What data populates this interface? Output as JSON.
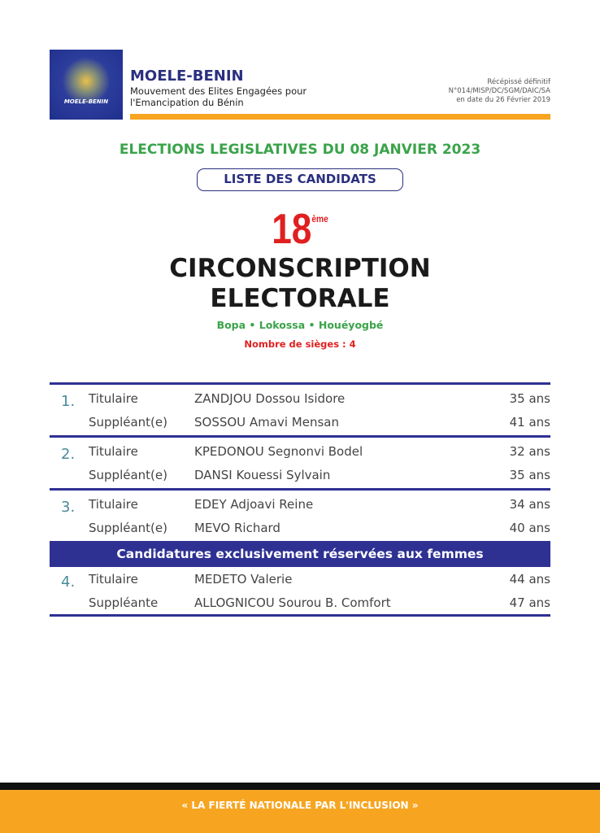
{
  "header": {
    "logo_text": "MOELE-BENIN",
    "brand": "MOELE-BENIN",
    "subtitle_line1": "Mouvement des Elites Engagées pour",
    "subtitle_line2": "l'Emancipation du Bénin",
    "receipt_line1": "Récépissé définitif",
    "receipt_line2": "N°014/MISP/DC/SGM/DAIC/SA",
    "receipt_line3": "en date du 26 Février 2019",
    "accent_color": "#f7a521",
    "brand_color": "#2a2f7f"
  },
  "title": {
    "elections": "ELECTIONS LEGISLATIVES DU 08 JANVIER 2023",
    "list_label": "LISTE DES CANDIDATS",
    "number": "18",
    "suffix": "ème",
    "circ_line1": "CIRCONSCRIPTION",
    "circ_line2": "ELECTORALE",
    "places": "Bopa • Lokossa • Houéyogbé",
    "seats": "Nombre de sièges : 4"
  },
  "candidates": [
    {
      "index": "1.",
      "rows": [
        {
          "role": "Titulaire",
          "name": "ZANDJOU Dossou Isidore",
          "age": "35 ans"
        },
        {
          "role": "Suppléant(e)",
          "name": "SOSSOU Amavi Mensan",
          "age": "41 ans"
        }
      ]
    },
    {
      "index": "2.",
      "rows": [
        {
          "role": "Titulaire",
          "name": "KPEDONOU Segnonvi Bodel",
          "age": "32 ans"
        },
        {
          "role": "Suppléant(e)",
          "name": "DANSI Kouessi Sylvain",
          "age": "35 ans"
        }
      ]
    },
    {
      "index": "3.",
      "rows": [
        {
          "role": "Titulaire",
          "name": "EDEY Adjoavi Reine",
          "age": "34 ans"
        },
        {
          "role": "Suppléant(e)",
          "name": "MEVO Richard",
          "age": "40 ans"
        }
      ]
    },
    {
      "index": "4.",
      "rows": [
        {
          "role": "Titulaire",
          "name": "MEDETO Valerie",
          "age": "44 ans"
        },
        {
          "role": "Suppléante",
          "name": "ALLOGNICOU Sourou B. Comfort",
          "age": "47 ans"
        }
      ]
    }
  ],
  "women_banner": "Candidatures exclusivement réservées aux femmes",
  "footer": {
    "slogan": "« LA FIERTÉ NATIONALE PAR L'INCLUSION »"
  }
}
